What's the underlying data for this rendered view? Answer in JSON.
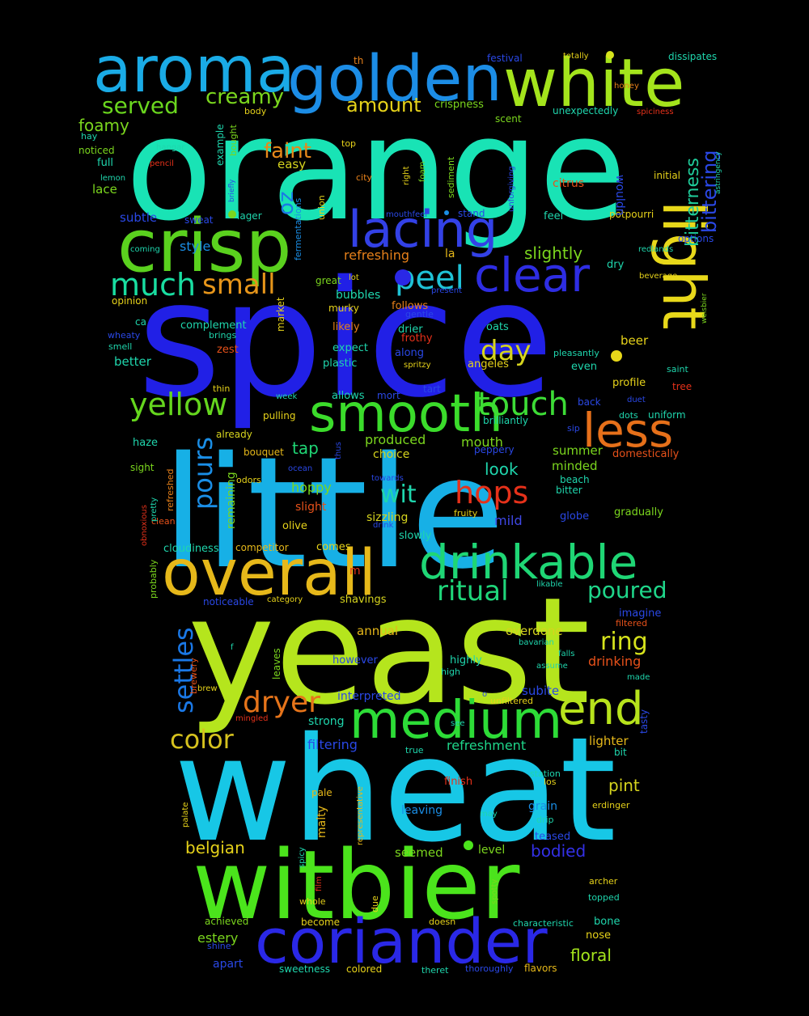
{
  "colors": {
    "background": "#000000",
    "palette_note": "rainbow (green / cyan / blue / yellow / orange / red)"
  },
  "words": [
    {
      "text": "orange",
      "color": "#19e3b5"
    },
    {
      "text": "spice",
      "color": "#2120e6"
    },
    {
      "text": "little",
      "color": "#17b0e6"
    },
    {
      "text": "yeast",
      "color": "#b5e51d"
    },
    {
      "text": "wheat",
      "color": "#17c7e6"
    },
    {
      "text": "witbier",
      "color": "#4be41c"
    },
    {
      "text": "crisp",
      "color": "#5ad11e"
    },
    {
      "text": "aroma",
      "color": "#1aabe6"
    },
    {
      "text": "golden",
      "color": "#1c8de6"
    },
    {
      "text": "white",
      "color": "#a4e41c"
    },
    {
      "text": "light",
      "color": "#e8d81a"
    },
    {
      "text": "coriander",
      "color": "#2a28e6"
    },
    {
      "text": "overall",
      "color": "#e6b81a"
    },
    {
      "text": "drinkable",
      "color": "#1fd675"
    },
    {
      "text": "medium",
      "color": "#2ddc37"
    },
    {
      "text": "smooth",
      "color": "#3bdc2b"
    },
    {
      "text": "lacing",
      "color": "#3341e6"
    },
    {
      "text": "clear",
      "color": "#2e2de3"
    },
    {
      "text": "end",
      "color": "#b7e31c"
    },
    {
      "text": "less",
      "color": "#e6701a"
    },
    {
      "text": "peel",
      "color": "#1fc2d6"
    },
    {
      "text": "much",
      "color": "#19dea1"
    },
    {
      "text": "small",
      "color": "#e6951a"
    },
    {
      "text": "touch",
      "color": "#3ddc36"
    },
    {
      "text": "yellow",
      "color": "#65d61e"
    },
    {
      "text": "hops",
      "color": "#e6311a"
    },
    {
      "text": "dryer",
      "color": "#e6741a"
    },
    {
      "text": "ritual",
      "color": "#1fd67a"
    },
    {
      "text": "pours",
      "color": "#1a8ee6"
    },
    {
      "text": "settles",
      "color": "#1a78e6"
    },
    {
      "text": "color",
      "color": "#d6c21e"
    },
    {
      "text": "served",
      "color": "#6ad61e"
    },
    {
      "text": "creamy",
      "color": "#7ad61e"
    },
    {
      "text": "amount",
      "color": "#e6d21a"
    },
    {
      "text": "faint",
      "color": "#e6891a"
    },
    {
      "text": "day",
      "color": "#d6d41e"
    },
    {
      "text": "bitterness",
      "color": "#1fcc9a"
    },
    {
      "text": "bittering",
      "color": "#2a48e6"
    },
    {
      "text": "poured",
      "color": "#1fd68a"
    },
    {
      "text": "ring",
      "color": "#d6e31c"
    },
    {
      "text": "wit",
      "color": "#1fd6ad"
    },
    {
      "text": "oz",
      "color": "#1a7ae6"
    },
    {
      "text": "slightly",
      "color": "#7bd61e"
    },
    {
      "text": "foamy",
      "color": "#7bd61e"
    },
    {
      "text": "style",
      "color": "#1a8ee6"
    },
    {
      "text": "refreshing",
      "color": "#e6801a"
    },
    {
      "text": "pint",
      "color": "#d6d41e"
    },
    {
      "text": "floral",
      "color": "#a4e41c"
    },
    {
      "text": "bodied",
      "color": "#3330e6"
    },
    {
      "text": "belgian",
      "color": "#e6d21a"
    },
    {
      "text": "estery",
      "color": "#7bd61e"
    },
    {
      "text": "drinking",
      "color": "#e6511a"
    },
    {
      "text": "filtering",
      "color": "#2a48e6"
    },
    {
      "text": "refreshment",
      "color": "#1fd68a"
    },
    {
      "text": "mouth",
      "color": "#7bd61e"
    },
    {
      "text": "look",
      "color": "#1fd6ad"
    },
    {
      "text": "tap",
      "color": "#1fd675"
    },
    {
      "text": "hoppy",
      "color": "#7bd61e"
    },
    {
      "text": "produced",
      "color": "#7bd61e"
    },
    {
      "text": "choice",
      "color": "#d6d41e"
    },
    {
      "text": "sizzling",
      "color": "#d6d41e"
    },
    {
      "text": "mild",
      "color": "#3f48e6"
    },
    {
      "text": "crispness",
      "color": "#7bd61e"
    },
    {
      "text": "beer",
      "color": "#e6d21a"
    },
    {
      "text": "summer",
      "color": "#7bd61e"
    },
    {
      "text": "minded",
      "color": "#7bd61e"
    },
    {
      "text": "overdone",
      "color": "#d6d41e"
    },
    {
      "text": "lighter",
      "color": "#e6b81a"
    },
    {
      "text": "subite",
      "color": "#2a48e6"
    },
    {
      "text": "annual",
      "color": "#e6b81a"
    },
    {
      "text": "interpreted",
      "color": "#2a48e6"
    },
    {
      "text": "strong",
      "color": "#1fd6ad"
    },
    {
      "text": "subtle",
      "color": "#2a48e6"
    },
    {
      "text": "lace",
      "color": "#7bd61e"
    },
    {
      "text": "easy",
      "color": "#d6d41e"
    },
    {
      "text": "citrus",
      "color": "#e6511a"
    },
    {
      "text": "better",
      "color": "#1fd6ad"
    },
    {
      "text": "seemed",
      "color": "#7bd61e"
    },
    {
      "text": "level",
      "color": "#7bd61e"
    },
    {
      "text": "malty",
      "color": "#e6b81a"
    },
    {
      "text": "leaving",
      "color": "#1a8ee6"
    },
    {
      "text": "grain",
      "color": "#1a8ee6"
    },
    {
      "text": "apart",
      "color": "#2a48e6"
    },
    {
      "text": "sweetness",
      "color": "#1fd6ad"
    },
    {
      "text": "colored",
      "color": "#e6d21a"
    },
    {
      "text": "flavors",
      "color": "#e6b81a"
    },
    {
      "text": "bubbles",
      "color": "#1fd6ad"
    },
    {
      "text": "great",
      "color": "#7bd61e"
    },
    {
      "text": "follows",
      "color": "#e6801a"
    },
    {
      "text": "oats",
      "color": "#1fd6ad"
    },
    {
      "text": "feel",
      "color": "#1fd6ad"
    },
    {
      "text": "potpourri",
      "color": "#e6d21a"
    },
    {
      "text": "options",
      "color": "#2a48e6"
    },
    {
      "text": "dry",
      "color": "#1fd6ad"
    },
    {
      "text": "lager",
      "color": "#1fd6ad"
    },
    {
      "text": "sweat",
      "color": "#2a48e6"
    },
    {
      "text": "la",
      "color": "#e6b81a"
    },
    {
      "text": "profile",
      "color": "#e6d21a"
    },
    {
      "text": "back",
      "color": "#2a48e6"
    },
    {
      "text": "uniform",
      "color": "#1fd6ad"
    },
    {
      "text": "even",
      "color": "#1fd6ad"
    },
    {
      "text": "tree",
      "color": "#e6311a"
    },
    {
      "text": "haze",
      "color": "#1fd6ad"
    },
    {
      "text": "already",
      "color": "#d6d41e"
    },
    {
      "text": "bouquet",
      "color": "#e6b81a"
    },
    {
      "text": "remaining",
      "color": "#7bd61e"
    },
    {
      "text": "slight",
      "color": "#e6511a"
    },
    {
      "text": "olive",
      "color": "#e6d21a"
    },
    {
      "text": "cloudiness",
      "color": "#1fd6ad"
    },
    {
      "text": "competitor",
      "color": "#e6b81a"
    },
    {
      "text": "comes",
      "color": "#e6d21a"
    },
    {
      "text": "shavings",
      "color": "#d6d41e"
    },
    {
      "text": "allows",
      "color": "#1fd6ad"
    },
    {
      "text": "mort",
      "color": "#2a48e6"
    },
    {
      "text": "tart",
      "color": "#2a48e6"
    },
    {
      "text": "highly",
      "color": "#1fd6ad"
    },
    {
      "text": "however",
      "color": "#2a48e6"
    },
    {
      "text": "pulling",
      "color": "#e6d21a"
    },
    {
      "text": "plastic",
      "color": "#1fd6ad"
    },
    {
      "text": "expect",
      "color": "#1fd6ad"
    },
    {
      "text": "drier",
      "color": "#1fd6ad"
    },
    {
      "text": "frothy",
      "color": "#e6311a"
    },
    {
      "text": "along",
      "color": "#2a48e6"
    },
    {
      "text": "likely",
      "color": "#e6801a"
    },
    {
      "text": "murky",
      "color": "#e6d21a"
    },
    {
      "text": "angeles",
      "color": "#e6d21a"
    },
    {
      "text": "complement",
      "color": "#1fd6ad"
    },
    {
      "text": "market",
      "color": "#e6d21a"
    },
    {
      "text": "zest",
      "color": "#e6511a"
    },
    {
      "text": "slowly",
      "color": "#1fd6ad"
    },
    {
      "text": "gradually",
      "color": "#7bd61e"
    },
    {
      "text": "globe",
      "color": "#2a48e6"
    },
    {
      "text": "beach",
      "color": "#1fd6ad"
    },
    {
      "text": "bitter",
      "color": "#1fd6ad"
    },
    {
      "text": "peppery",
      "color": "#2a48e6"
    },
    {
      "text": "domestically",
      "color": "#e6511a"
    },
    {
      "text": "brilliantly",
      "color": "#1fd6ad"
    },
    {
      "text": "imagine",
      "color": "#2a48e6"
    },
    {
      "text": "filtered",
      "color": "#e6511a"
    },
    {
      "text": "teased",
      "color": "#2a48e6"
    },
    {
      "text": "archer",
      "color": "#e6d21a"
    },
    {
      "text": "topped",
      "color": "#1fd6ad"
    },
    {
      "text": "bone",
      "color": "#1fd6ad"
    },
    {
      "text": "nose",
      "color": "#e6d21a"
    },
    {
      "text": "characteristic",
      "color": "#1fd6ad"
    },
    {
      "text": "become",
      "color": "#e6d21a"
    },
    {
      "text": "achieved",
      "color": "#7bd61e"
    },
    {
      "text": "shine",
      "color": "#2a48e6"
    },
    {
      "text": "pale",
      "color": "#e6b81a"
    },
    {
      "text": "finish",
      "color": "#e6311a"
    },
    {
      "text": "station",
      "color": "#1fd6ad"
    },
    {
      "text": "erdinger",
      "color": "#e6d21a"
    },
    {
      "text": "drip",
      "color": "#1fd6ad"
    },
    {
      "text": "bit",
      "color": "#1fd6ad"
    },
    {
      "text": "tasty",
      "color": "#2a48e6"
    },
    {
      "text": "noticeable",
      "color": "#2a48e6"
    },
    {
      "text": "category",
      "color": "#e6d21a"
    },
    {
      "text": "leaves",
      "color": "#7bd61e"
    },
    {
      "text": "brewery",
      "color": "#e6511a"
    },
    {
      "text": "brew",
      "color": "#e6d21a"
    },
    {
      "text": "mingled",
      "color": "#e6311a"
    },
    {
      "text": "high",
      "color": "#1fd6ad"
    },
    {
      "text": "bavarian",
      "color": "#1fd6ad"
    },
    {
      "text": "falls",
      "color": "#1fd6ad"
    },
    {
      "text": "assume",
      "color": "#1fd6ad"
    },
    {
      "text": "made",
      "color": "#1fd6ad"
    },
    {
      "text": "unfiltered",
      "color": "#e6d21a"
    },
    {
      "text": "true",
      "color": "#1fd6ad"
    },
    {
      "text": "may",
      "color": "#1fd6ad"
    },
    {
      "text": "los",
      "color": "#e6d21a"
    },
    {
      "text": "doesn",
      "color": "#e6d21a"
    },
    {
      "text": "theret",
      "color": "#1fd6ad"
    },
    {
      "text": "thoroughly",
      "color": "#2a48e6"
    },
    {
      "text": "whole",
      "color": "#e6d21a"
    },
    {
      "text": "due",
      "color": "#e6d21a"
    },
    {
      "text": "spotty",
      "color": "#7bd61e"
    },
    {
      "text": "film",
      "color": "#e6311a"
    },
    {
      "text": "spicy",
      "color": "#1fd6ad"
    },
    {
      "text": "palate",
      "color": "#e6d21a"
    },
    {
      "text": "representative",
      "color": "#e6b81a"
    },
    {
      "text": "see",
      "color": "#1fd6ad"
    },
    {
      "text": "o",
      "color": "#2a48e6"
    },
    {
      "text": "f",
      "color": "#1fd6ad"
    },
    {
      "text": "m",
      "color": "#e6311a"
    },
    {
      "text": "probably",
      "color": "#7bd61e"
    },
    {
      "text": "obnoxious",
      "color": "#e6311a"
    },
    {
      "text": "clean",
      "color": "#e6511a"
    },
    {
      "text": "sight",
      "color": "#7bd61e"
    },
    {
      "text": "refreshed",
      "color": "#e6801a"
    },
    {
      "text": "pretty",
      "color": "#1fd6ad"
    },
    {
      "text": "odors",
      "color": "#e6d21a"
    },
    {
      "text": "ocean",
      "color": "#2a48e6"
    },
    {
      "text": "towards",
      "color": "#2a48e6"
    },
    {
      "text": "drink",
      "color": "#2a48e6"
    },
    {
      "text": "fruity",
      "color": "#e6d21a"
    },
    {
      "text": "thus",
      "color": "#2a48e6"
    },
    {
      "text": "thin",
      "color": "#e6d21a"
    },
    {
      "text": "week",
      "color": "#1fd6ad"
    },
    {
      "text": "spritzy",
      "color": "#e6d21a"
    },
    {
      "text": "pleasantly",
      "color": "#1fd6ad"
    },
    {
      "text": "duet",
      "color": "#2a48e6"
    },
    {
      "text": "dots",
      "color": "#1fd6ad"
    },
    {
      "text": "sip",
      "color": "#2a48e6"
    },
    {
      "text": "likable",
      "color": "#1fd6ad"
    },
    {
      "text": "saint",
      "color": "#1fd6ad"
    },
    {
      "text": "weisbier",
      "color": "#7bd61e"
    },
    {
      "text": "beverage",
      "color": "#e6d21a"
    },
    {
      "text": "redlands",
      "color": "#1fd6ad"
    },
    {
      "text": "wouldn",
      "color": "#2a48e6"
    },
    {
      "text": "initial",
      "color": "#e6d21a"
    },
    {
      "text": "astringency",
      "color": "#1fd6ad"
    },
    {
      "text": "spiciness",
      "color": "#e6311a"
    },
    {
      "text": "unexpectedly",
      "color": "#1fd6ad"
    },
    {
      "text": "honey",
      "color": "#e6801a"
    },
    {
      "text": "totally",
      "color": "#e6d21a"
    },
    {
      "text": "festival",
      "color": "#2a48e6"
    },
    {
      "text": "dissipates",
      "color": "#1fd6ad"
    },
    {
      "text": "th",
      "color": "#e6801a"
    },
    {
      "text": "scent",
      "color": "#7bd61e"
    },
    {
      "text": "top",
      "color": "#e6d21a"
    },
    {
      "text": "bought",
      "color": "#7bd61e"
    },
    {
      "text": "body",
      "color": "#e6d21a"
    },
    {
      "text": "example",
      "color": "#1fd6ad"
    },
    {
      "text": "hay",
      "color": "#1fd6ad"
    },
    {
      "text": "noticed",
      "color": "#7bd61e"
    },
    {
      "text": "full",
      "color": "#1fd6ad"
    },
    {
      "text": "hangar",
      "color": "#1fd6ad"
    },
    {
      "text": "pencil",
      "color": "#e6311a"
    },
    {
      "text": "lemon",
      "color": "#1fd6ad"
    },
    {
      "text": "briefly",
      "color": "#2a48e6"
    },
    {
      "text": "city",
      "color": "#e6801a"
    },
    {
      "text": "right",
      "color": "#e6d21a"
    },
    {
      "text": "foam",
      "color": "#7bd61e"
    },
    {
      "text": "sediment",
      "color": "#7bd61e"
    },
    {
      "text": "unforgiving",
      "color": "#2a48e6"
    },
    {
      "text": "union",
      "color": "#e6d21a"
    },
    {
      "text": "fermentations",
      "color": "#1a8ee6"
    },
    {
      "text": "stand",
      "color": "#2a48e6"
    },
    {
      "text": "mouthfeel",
      "color": "#2a48e6"
    },
    {
      "text": "coming",
      "color": "#1fd6ad"
    },
    {
      "text": "lot",
      "color": "#e6d21a"
    },
    {
      "text": "present",
      "color": "#2a48e6"
    },
    {
      "text": "gentle",
      "color": "#2a48e6"
    },
    {
      "text": "opinion",
      "color": "#e6d21a"
    },
    {
      "text": "ca",
      "color": "#1fd6ad"
    },
    {
      "text": "wheaty",
      "color": "#2a48e6"
    },
    {
      "text": "brings",
      "color": "#1fd6ad"
    },
    {
      "text": "smell",
      "color": "#1fd6ad"
    }
  ]
}
